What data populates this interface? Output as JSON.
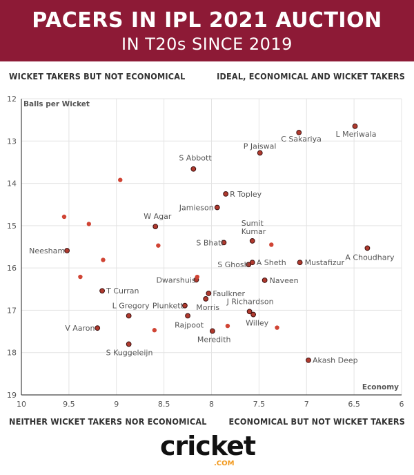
{
  "header": {
    "title": "PACERS IN IPL 2021 AUCTION",
    "subtitle": "IN T20s SINCE 2019"
  },
  "quadrants": {
    "top_left": "WICKET TAKERS BUT NOT ECONOMICAL",
    "top_right": "IDEAL, ECONOMICAL AND WICKET TAKERS",
    "bottom_left": "NEITHER WICKET TAKERS NOR ECONOMICAL",
    "bottom_right": "ECONOMICAL BUT NOT WICKET TAKERS"
  },
  "logo": {
    "text": "cricket",
    "sub": ".COM"
  },
  "colors": {
    "header": "#8d1a36",
    "point_fill": "#c0392b",
    "labeled_point_fill": "#b03a2e"
  },
  "chart_data": {
    "type": "scatter",
    "xlabel": "Economy",
    "ylabel": "Balls per Wicket",
    "xlim": [
      10,
      6
    ],
    "ylim": [
      19,
      12
    ],
    "x_ticks": [
      "10",
      "9.5",
      "9",
      "8.5",
      "8",
      "7.5",
      "7",
      "6.5",
      "6"
    ],
    "y_ticks": [
      "12",
      "13",
      "14",
      "15",
      "16",
      "17",
      "18",
      "19"
    ],
    "grid": true,
    "points": [
      {
        "name": "L Meriwala",
        "x": 6.49,
        "y": 12.65
      },
      {
        "name": "C Sakariya",
        "x": 7.08,
        "y": 12.8
      },
      {
        "name": "P Jaiswal",
        "x": 7.49,
        "y": 13.28
      },
      {
        "name": "S Abbott",
        "x": 8.19,
        "y": 13.66
      },
      {
        "name": "R Topley",
        "x": 7.85,
        "y": 14.25
      },
      {
        "name": "Jamieson",
        "x": 7.94,
        "y": 14.57
      },
      {
        "name": "W Agar",
        "x": 8.59,
        "y": 15.02
      },
      {
        "name": "Sumit Kumar",
        "x": 7.57,
        "y": 15.36
      },
      {
        "name": "S Bhati",
        "x": 7.87,
        "y": 15.4
      },
      {
        "name": "Neesham",
        "x": 9.52,
        "y": 15.59
      },
      {
        "name": "A Choudhary",
        "x": 6.36,
        "y": 15.53
      },
      {
        "name": "A Sheth",
        "x": 7.57,
        "y": 15.87
      },
      {
        "name": "S Ghosh",
        "x": 7.61,
        "y": 15.92
      },
      {
        "name": "Mustafizur",
        "x": 7.07,
        "y": 15.87
      },
      {
        "name": "Naveen",
        "x": 7.44,
        "y": 16.29
      },
      {
        "name": "Dwarshuis",
        "x": 8.16,
        "y": 16.28
      },
      {
        "name": "T Curran",
        "x": 9.15,
        "y": 16.54
      },
      {
        "name": "Faulkner",
        "x": 8.03,
        "y": 16.6
      },
      {
        "name": "Morris",
        "x": 8.06,
        "y": 16.73
      },
      {
        "name": "J Richardson",
        "x": 7.6,
        "y": 17.03
      },
      {
        "name": "Plunkett",
        "x": 8.28,
        "y": 16.89
      },
      {
        "name": "L Gregory",
        "x": 8.87,
        "y": 17.13
      },
      {
        "name": "Rajpoot",
        "x": 8.25,
        "y": 17.13
      },
      {
        "name": "Willey",
        "x": 7.56,
        "y": 17.1
      },
      {
        "name": "V Aaron",
        "x": 9.2,
        "y": 17.42
      },
      {
        "name": "Meredith",
        "x": 7.99,
        "y": 17.49
      },
      {
        "name": "S Kuggeleijn",
        "x": 8.87,
        "y": 17.8
      },
      {
        "name": "Akash Deep",
        "x": 6.98,
        "y": 18.18
      },
      {
        "name": "",
        "x": 8.96,
        "y": 13.92
      },
      {
        "name": "",
        "x": 9.55,
        "y": 14.79
      },
      {
        "name": "",
        "x": 9.29,
        "y": 14.96
      },
      {
        "name": "",
        "x": 8.56,
        "y": 15.47
      },
      {
        "name": "",
        "x": 7.37,
        "y": 15.45
      },
      {
        "name": "",
        "x": 9.14,
        "y": 15.81
      },
      {
        "name": "",
        "x": 9.38,
        "y": 16.21
      },
      {
        "name": "",
        "x": 8.15,
        "y": 16.21
      },
      {
        "name": "",
        "x": 7.83,
        "y": 17.37
      },
      {
        "name": "",
        "x": 7.31,
        "y": 17.41
      },
      {
        "name": "",
        "x": 8.6,
        "y": 17.47
      }
    ]
  }
}
